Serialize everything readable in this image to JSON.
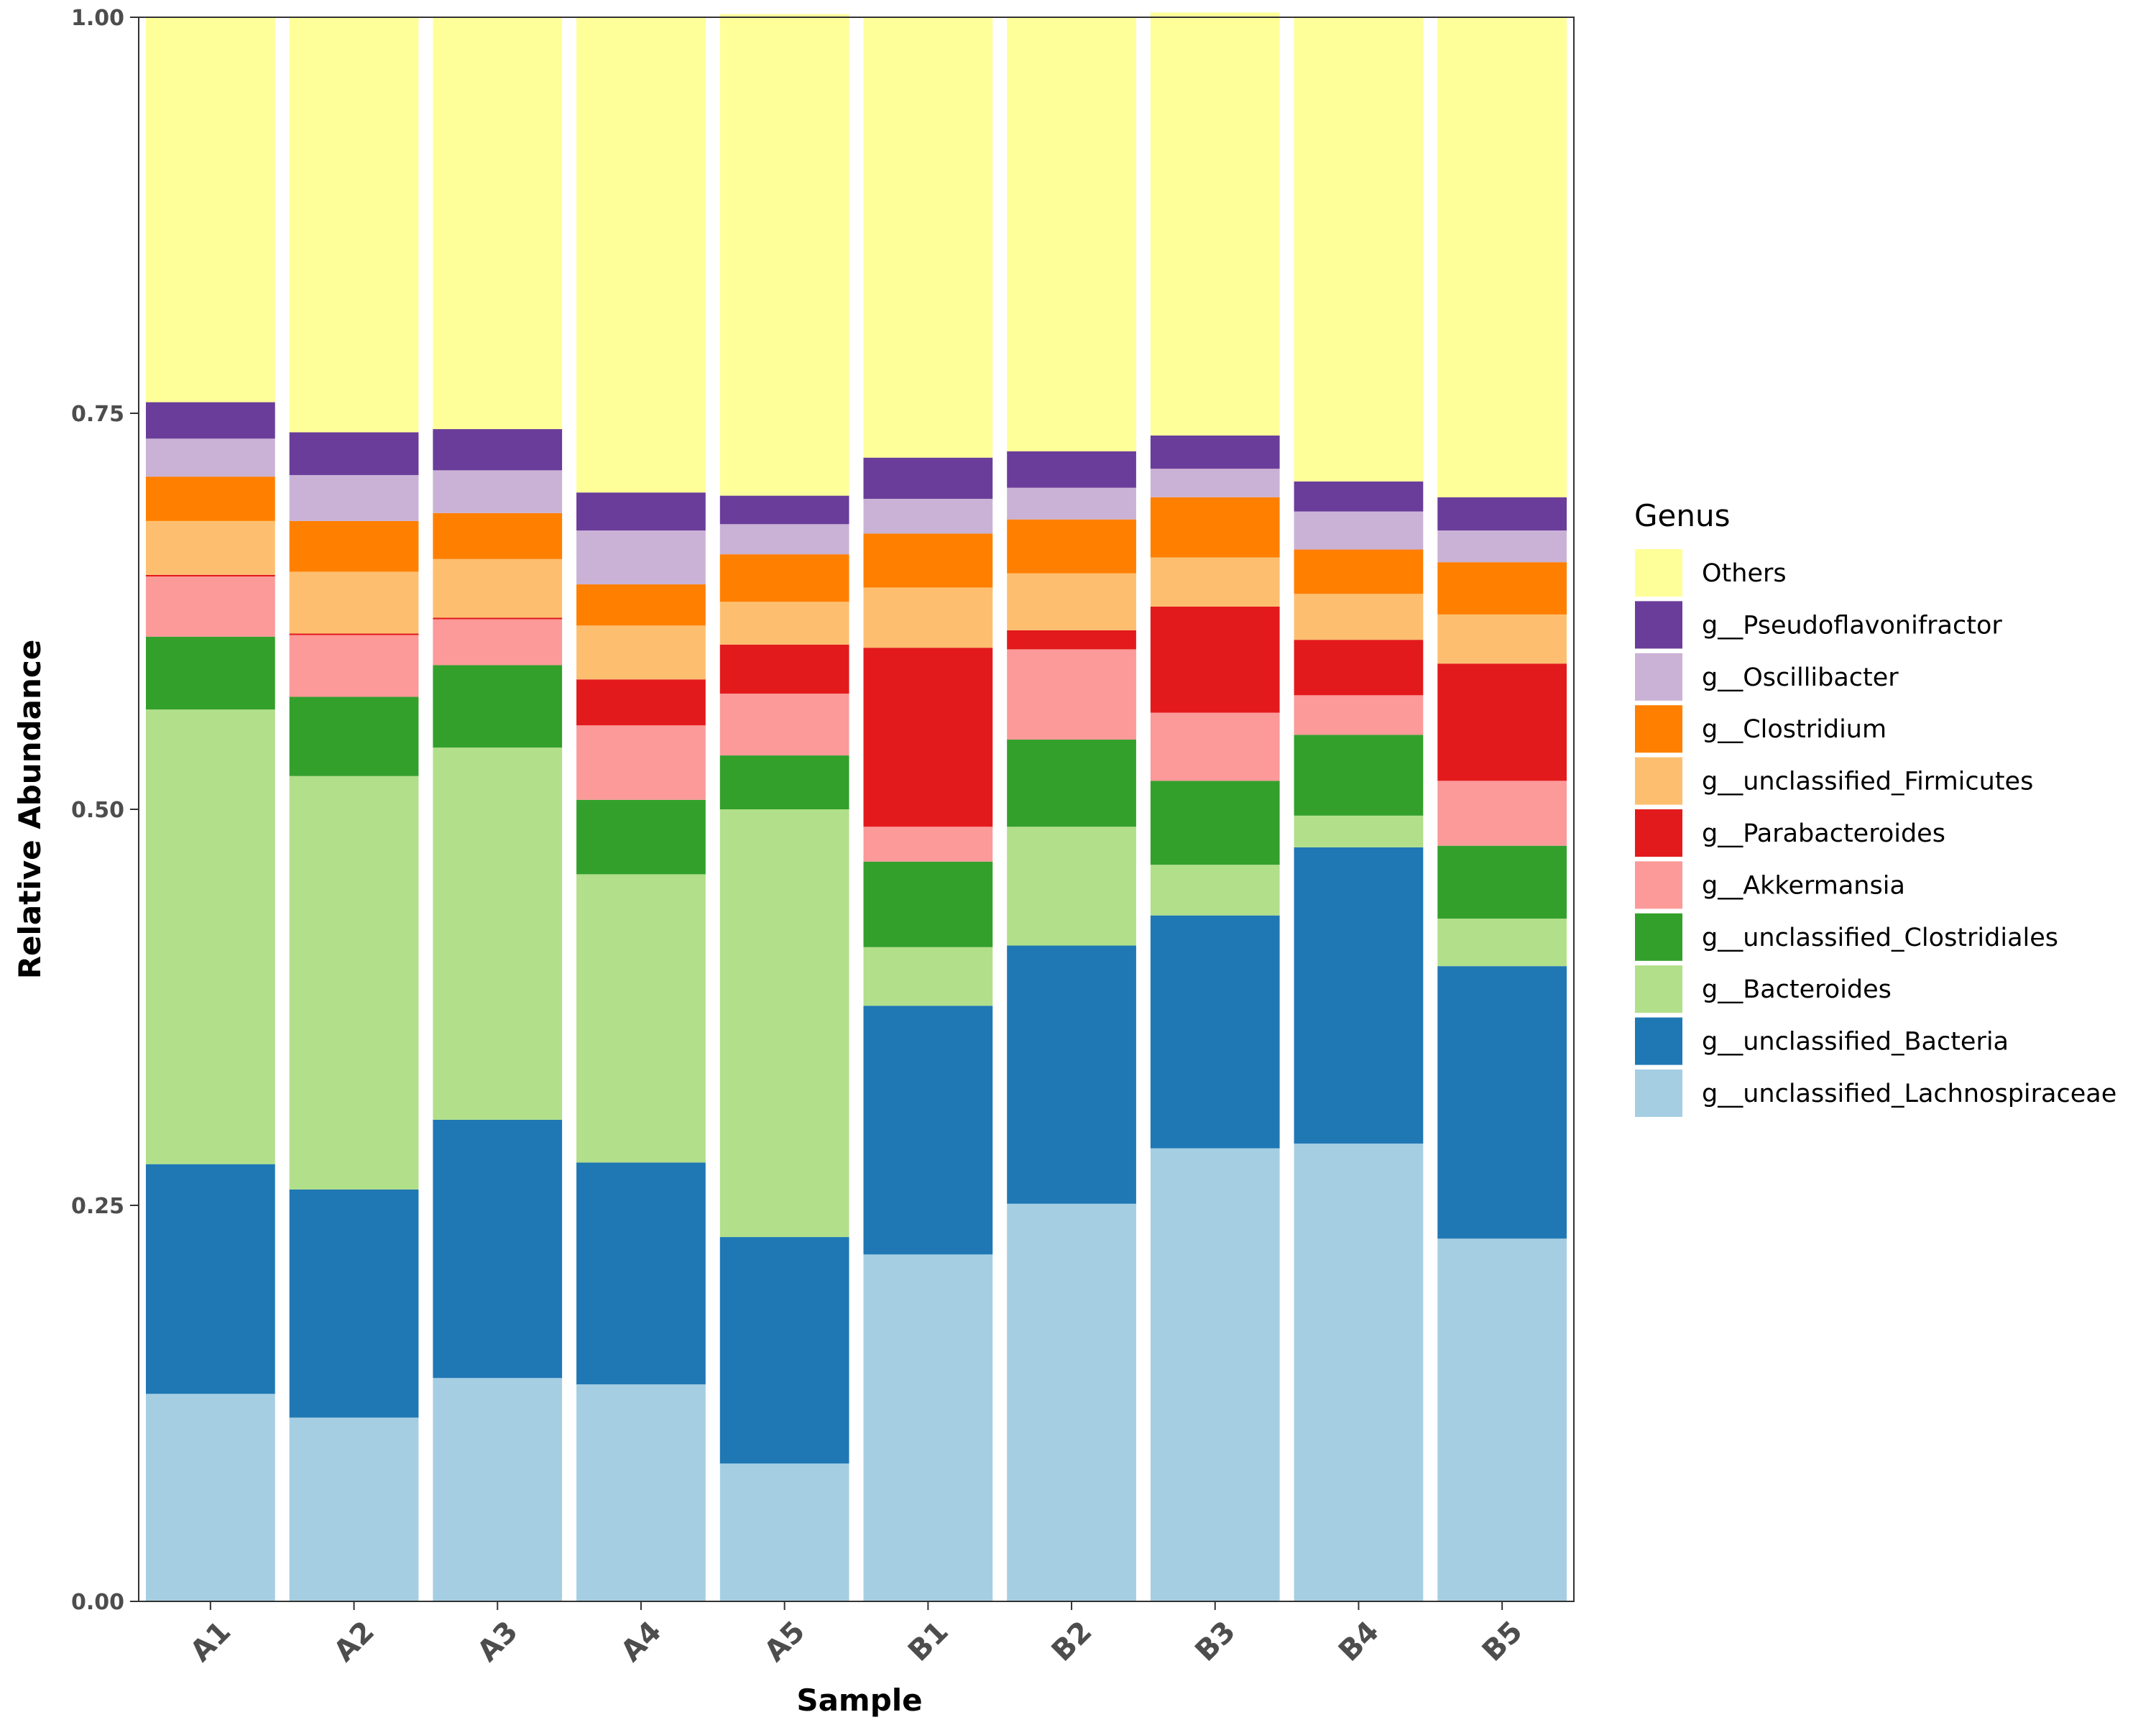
{
  "chart_data": {
    "type": "bar",
    "stacked": true,
    "title": "",
    "xlabel": "Sample",
    "ylabel": "Relative Abundance",
    "ylim": [
      0,
      1
    ],
    "yticks": [
      "0.00",
      "0.25",
      "0.50",
      "0.75",
      "1.00"
    ],
    "ytick_values": [
      0,
      0.25,
      0.5,
      0.75,
      1.0
    ],
    "grid": false,
    "legend_title": "Genus",
    "legend_position": "right",
    "categories": [
      "A1",
      "A2",
      "A3",
      "A4",
      "A5",
      "B1",
      "B2",
      "B3",
      "B4",
      "B5"
    ],
    "series": [
      {
        "name": "g__unclassified_Lachnospiraceae",
        "color": "#a6cee3",
        "values": [
          0.131,
          0.116,
          0.141,
          0.137,
          0.087,
          0.219,
          0.251,
          0.286,
          0.289,
          0.229
        ]
      },
      {
        "name": "g__unclassified_Bacteria",
        "color": "#1f78b4",
        "values": [
          0.145,
          0.144,
          0.163,
          0.14,
          0.143,
          0.157,
          0.163,
          0.147,
          0.187,
          0.172
        ]
      },
      {
        "name": "g__Bacteroides",
        "color": "#b2df8a",
        "values": [
          0.287,
          0.261,
          0.235,
          0.182,
          0.27,
          0.037,
          0.075,
          0.032,
          0.02,
          0.03
        ]
      },
      {
        "name": "g__unclassified_Clostridiales",
        "color": "#33a02c",
        "values": [
          0.046,
          0.05,
          0.052,
          0.047,
          0.034,
          0.054,
          0.055,
          0.053,
          0.051,
          0.046
        ]
      },
      {
        "name": "g__Akkermansia",
        "color": "#fb9a99",
        "values": [
          0.038,
          0.039,
          0.029,
          0.047,
          0.039,
          0.022,
          0.057,
          0.043,
          0.025,
          0.041
        ]
      },
      {
        "name": "g__Parabacteroides",
        "color": "#e31a1c",
        "values": [
          0.001,
          0.001,
          0.001,
          0.029,
          0.031,
          0.113,
          0.012,
          0.067,
          0.035,
          0.074
        ]
      },
      {
        "name": "g__unclassified_Firmicutes",
        "color": "#fdbf6f",
        "values": [
          0.034,
          0.039,
          0.037,
          0.034,
          0.027,
          0.038,
          0.036,
          0.031,
          0.029,
          0.031
        ]
      },
      {
        "name": "g__Clostridium",
        "color": "#ff7f00",
        "values": [
          0.028,
          0.032,
          0.029,
          0.026,
          0.03,
          0.034,
          0.034,
          0.038,
          0.028,
          0.033
        ]
      },
      {
        "name": "g__Oscillibacter",
        "color": "#cab2d6",
        "values": [
          0.024,
          0.029,
          0.027,
          0.034,
          0.019,
          0.022,
          0.02,
          0.018,
          0.024,
          0.02
        ]
      },
      {
        "name": "g__Pseudoflavonifractor",
        "color": "#6a3d9a",
        "values": [
          0.023,
          0.027,
          0.026,
          0.024,
          0.018,
          0.026,
          0.023,
          0.021,
          0.019,
          0.021
        ]
      },
      {
        "name": "Others",
        "color": "#ffff99",
        "values": [
          0.243,
          0.262,
          0.26,
          0.3,
          0.304,
          0.278,
          0.274,
          0.267,
          0.293,
          0.303
        ]
      }
    ]
  }
}
